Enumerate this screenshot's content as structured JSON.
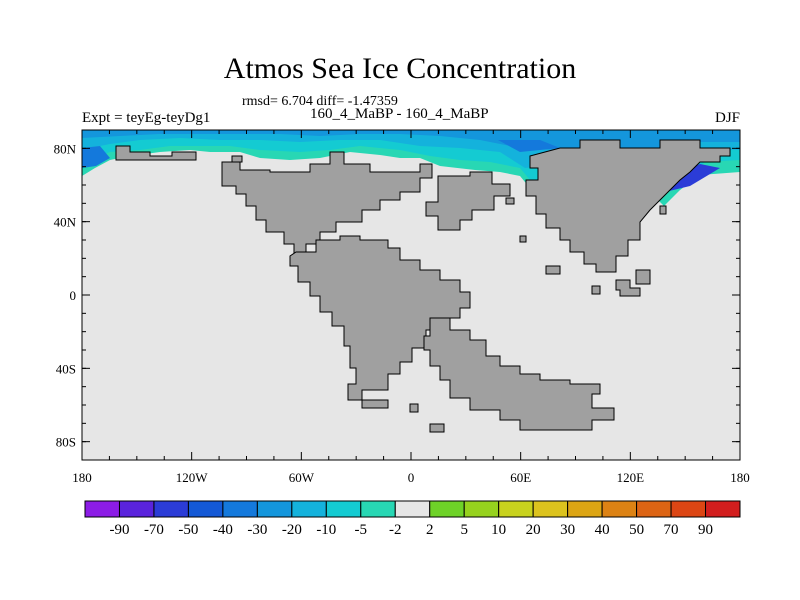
{
  "chart_data": {
    "type": "heatmap",
    "title": "Atmos Sea Ice Concentration",
    "subtitle": "rmsd= 6.704 diff= -1.47359",
    "left_string": "Expt = teyEg-teyDg1",
    "center_string": "160_4_MaBP - 160_4_MaBP",
    "right_string": "DJF",
    "x_ticks": [
      "180",
      "120W",
      "60W",
      "0",
      "60E",
      "120E",
      "180"
    ],
    "y_ticks": [
      "80N",
      "40N",
      "0",
      "40S",
      "80S"
    ],
    "colorbar": {
      "labels": [
        "-90",
        "-70",
        "-50",
        "-40",
        "-30",
        "-20",
        "-10",
        "-5",
        "-2",
        "2",
        "5",
        "10",
        "20",
        "30",
        "40",
        "50",
        "70",
        "90"
      ],
      "colors": [
        "#8c1ce6",
        "#5a23dc",
        "#2b3cd7",
        "#1459d6",
        "#1479dc",
        "#1496dc",
        "#14b2dc",
        "#14cbd2",
        "#28d7b4",
        "#e6e6e6",
        "#6ed228",
        "#96d21e",
        "#c8d21e",
        "#dcc31e",
        "#dca514",
        "#dc8214",
        "#dc6414",
        "#dc4614",
        "#d21e1e"
      ]
    },
    "land_color": "#a0a0a0",
    "ocean_color": "#e6e6e6"
  }
}
